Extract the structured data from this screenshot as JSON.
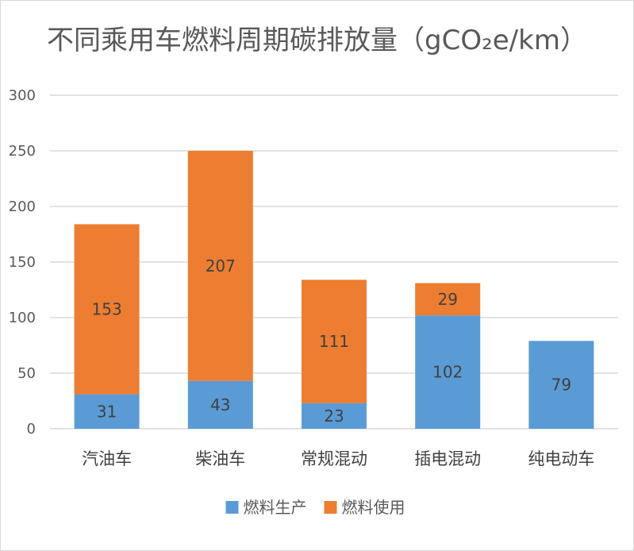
{
  "chart_data": {
    "type": "bar",
    "stacked": true,
    "title": "不同乘用车燃料周期碳排放量（gCO₂e/km）",
    "categories": [
      "汽油车",
      "柴油车",
      "常规混动",
      "插电混动",
      "纯电动车"
    ],
    "series": [
      {
        "name": "燃料生产",
        "color": "#5b9bd5",
        "values": [
          31,
          43,
          23,
          102,
          79
        ]
      },
      {
        "name": "燃料使用",
        "color": "#ed7d31",
        "values": [
          153,
          207,
          111,
          29,
          0
        ]
      }
    ],
    "ylim": [
      0,
      300
    ],
    "yticks": [
      "0",
      "50",
      "100",
      "150",
      "200",
      "250",
      "300"
    ],
    "ytick_values": [
      0,
      50,
      100,
      150,
      200,
      250,
      300
    ],
    "grid": true,
    "legend_position": "bottom",
    "gridline_color": "#d9d9d9",
    "label_color": "#404040"
  }
}
